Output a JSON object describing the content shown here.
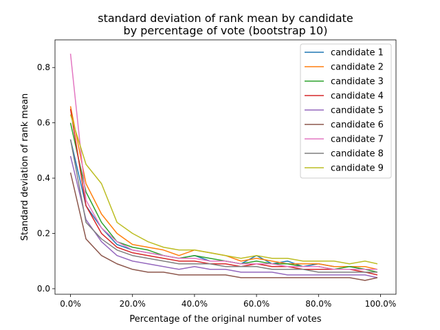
{
  "chart_data": {
    "type": "line",
    "title": "standard deviation of rank mean by candidate",
    "subtitle": "by percentage of vote (bootstrap 10)",
    "xlabel": "Percentage of the original number of votes",
    "ylabel": "Standard deviation of rank mean",
    "xlim": [
      -0.05,
      1.05
    ],
    "ylim": [
      -0.02,
      0.9
    ],
    "xticks": [
      0,
      0.2,
      0.4,
      0.6,
      0.8,
      1.0
    ],
    "xtick_labels": [
      "0.0%",
      "20.0%",
      "40.0%",
      "60.0%",
      "80.0%",
      "100.0%"
    ],
    "yticks": [
      0,
      0.2,
      0.4,
      0.6,
      0.8
    ],
    "ytick_labels": [
      "0.0",
      "0.2",
      "0.4",
      "0.6",
      "0.8"
    ],
    "grid": false,
    "legend_position": "top-right",
    "x": [
      0.0,
      0.05,
      0.1,
      0.15,
      0.2,
      0.25,
      0.3,
      0.35,
      0.4,
      0.45,
      0.5,
      0.55,
      0.6,
      0.65,
      0.7,
      0.75,
      0.8,
      0.85,
      0.9,
      0.95,
      0.99
    ],
    "series": [
      {
        "name": "candidate 1",
        "color": "#1f77b4",
        "values": [
          0.54,
          0.3,
          0.22,
          0.16,
          0.14,
          0.13,
          0.12,
          0.11,
          0.12,
          0.1,
          0.1,
          0.09,
          0.12,
          0.09,
          0.1,
          0.08,
          0.09,
          0.08,
          0.08,
          0.07,
          0.07
        ]
      },
      {
        "name": "candidate 2",
        "color": "#ff7f0e",
        "values": [
          0.66,
          0.38,
          0.27,
          0.2,
          0.16,
          0.15,
          0.14,
          0.12,
          0.14,
          0.13,
          0.12,
          0.1,
          0.11,
          0.1,
          0.09,
          0.09,
          0.09,
          0.08,
          0.08,
          0.08,
          0.07
        ]
      },
      {
        "name": "candidate 3",
        "color": "#2ca02c",
        "values": [
          0.6,
          0.35,
          0.24,
          0.17,
          0.15,
          0.14,
          0.12,
          0.11,
          0.12,
          0.11,
          0.1,
          0.09,
          0.1,
          0.09,
          0.09,
          0.08,
          0.08,
          0.07,
          0.08,
          0.07,
          0.06
        ]
      },
      {
        "name": "candidate 4",
        "color": "#d62728",
        "values": [
          0.65,
          0.3,
          0.2,
          0.15,
          0.13,
          0.12,
          0.11,
          0.1,
          0.1,
          0.09,
          0.09,
          0.08,
          0.09,
          0.08,
          0.08,
          0.07,
          0.07,
          0.07,
          0.07,
          0.06,
          0.05
        ]
      },
      {
        "name": "candidate 5",
        "color": "#9467bd",
        "values": [
          0.48,
          0.25,
          0.17,
          0.12,
          0.1,
          0.09,
          0.08,
          0.07,
          0.08,
          0.07,
          0.07,
          0.06,
          0.06,
          0.06,
          0.05,
          0.05,
          0.05,
          0.05,
          0.05,
          0.05,
          0.04
        ]
      },
      {
        "name": "candidate 6",
        "color": "#8c564b",
        "values": [
          0.42,
          0.18,
          0.12,
          0.09,
          0.07,
          0.06,
          0.06,
          0.05,
          0.05,
          0.05,
          0.05,
          0.04,
          0.04,
          0.04,
          0.04,
          0.04,
          0.04,
          0.04,
          0.04,
          0.03,
          0.04
        ]
      },
      {
        "name": "candidate 7",
        "color": "#e377c2",
        "values": [
          0.85,
          0.32,
          0.22,
          0.17,
          0.14,
          0.13,
          0.12,
          0.11,
          0.11,
          0.1,
          0.1,
          0.09,
          0.09,
          0.09,
          0.08,
          0.08,
          0.08,
          0.07,
          0.07,
          0.07,
          0.07
        ]
      },
      {
        "name": "candidate 8",
        "color": "#7f7f7f",
        "values": [
          0.54,
          0.24,
          0.18,
          0.14,
          0.12,
          0.11,
          0.1,
          0.09,
          0.09,
          0.09,
          0.08,
          0.08,
          0.08,
          0.07,
          0.07,
          0.07,
          0.06,
          0.06,
          0.06,
          0.06,
          0.06
        ]
      },
      {
        "name": "candidate 9",
        "color": "#bcbd22",
        "values": [
          0.63,
          0.45,
          0.38,
          0.24,
          0.2,
          0.17,
          0.15,
          0.14,
          0.14,
          0.13,
          0.12,
          0.11,
          0.12,
          0.11,
          0.11,
          0.1,
          0.1,
          0.1,
          0.09,
          0.1,
          0.09
        ]
      }
    ]
  }
}
